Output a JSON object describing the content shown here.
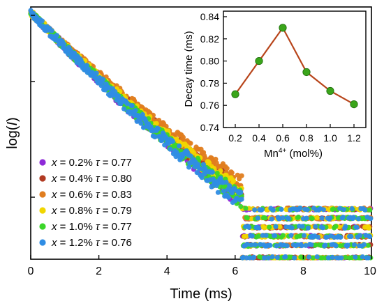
{
  "chart_data": [
    {
      "type": "scatter",
      "xlabel": "Time (ms)",
      "ylabel_prefix": "log(",
      "ylabel_var": "I",
      "ylabel_suffix": ")",
      "xlim": [
        0,
        10
      ],
      "ylim": [
        0,
        1
      ],
      "x_ticks": [
        "0",
        "2",
        "4",
        "6",
        "8",
        "10"
      ],
      "log_scale_y": true,
      "legend_position": "bottom-left",
      "series": [
        {
          "x_label": "x",
          "eq": " = 0.2% ",
          "tau_label": "τ",
          "tau_text": " = 0.77",
          "tau": 0.77,
          "color": "#8e2ad8",
          "noise_level": 5
        },
        {
          "x_label": "x",
          "eq": " = 0.4% ",
          "tau_label": "τ",
          "tau_text": " = 0.80",
          "tau": 0.8,
          "color": "#b13a22",
          "noise_level": 2
        },
        {
          "x_label": "x",
          "eq": " = 0.6% ",
          "tau_label": "τ",
          "tau_text": " = 0.83",
          "tau": 0.83,
          "color": "#e07d1f",
          "noise_level": 1
        },
        {
          "x_label": "x",
          "eq": " = 0.8% ",
          "tau_label": "τ",
          "tau_text": " = 0.79",
          "tau": 0.79,
          "color": "#f1d600",
          "noise_level": 4
        },
        {
          "x_label": "x",
          "eq": " = 1.0% ",
          "tau_label": "τ",
          "tau_text": " = 0.77",
          "tau": 0.77,
          "color": "#3bd62a",
          "noise_level": 3
        },
        {
          "x_label": "x",
          "eq": " = 1.2% ",
          "tau_label": "τ",
          "tau_text": " = 0.76",
          "tau": 0.76,
          "color": "#2f8de4",
          "noise_level": 5
        }
      ]
    },
    {
      "type": "line",
      "xlabel": "Mn",
      "xlabel_sup": "4+",
      "xlabel_suffix": " (mol%)",
      "ylabel": "Decay time (ms)",
      "x": [
        0.2,
        0.4,
        0.6,
        0.8,
        1.0,
        1.2
      ],
      "values": [
        0.77,
        0.8,
        0.83,
        0.79,
        0.773,
        0.761
      ],
      "x_ticks": [
        "0.2",
        "0.4",
        "0.6",
        "0.8",
        "1.0",
        "1.2"
      ],
      "y_ticks": [
        "0.74",
        "0.76",
        "0.78",
        "0.80",
        "0.82",
        "0.84"
      ],
      "xlim": [
        0.1,
        1.3
      ],
      "ylim": [
        0.74,
        0.845
      ],
      "line_color": "#b8451b",
      "marker_color": "#3aa51a"
    }
  ]
}
